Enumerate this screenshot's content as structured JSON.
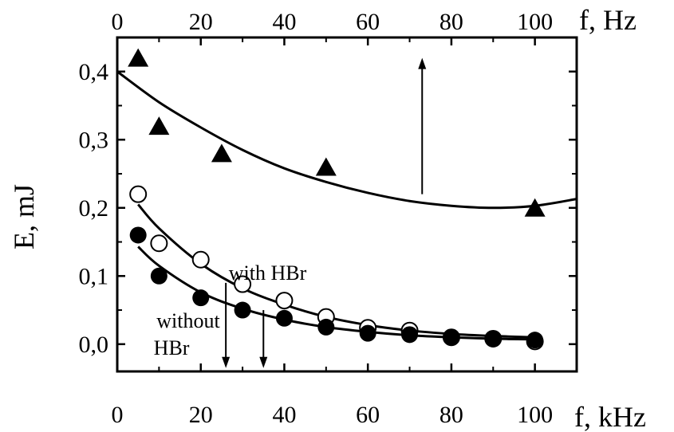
{
  "chart_data": {
    "type": "scatter",
    "title": "",
    "xlabel": "f, kHz",
    "x2label": "f, Hz",
    "ylabel": "E, mJ",
    "xlim": [
      0,
      110
    ],
    "x2lim": [
      0,
      110
    ],
    "ylim": [
      -0.04,
      0.45
    ],
    "x_ticks": [
      "0",
      "20",
      "40",
      "60",
      "80",
      "100"
    ],
    "x_tick_values": [
      0,
      20,
      40,
      60,
      80,
      100
    ],
    "x2_ticks": [
      "0",
      "20",
      "40",
      "60",
      "80",
      "100"
    ],
    "x2_tick_values": [
      0,
      20,
      40,
      60,
      80,
      100
    ],
    "y_ticks": [
      "0,0",
      "0,1",
      "0,2",
      "0,3",
      "0,4"
    ],
    "y_tick_values": [
      0.0,
      0.1,
      0.2,
      0.3,
      0.4
    ],
    "grid": false,
    "series": [
      {
        "axis": "top",
        "marker": "filled-triangle",
        "color": "#000000",
        "x": [
          5,
          10,
          25,
          50,
          100
        ],
        "y": [
          0.42,
          0.32,
          0.28,
          0.26,
          0.2
        ]
      },
      {
        "axis": "bottom",
        "marker": "open-circle",
        "color": "#000000",
        "x": [
          5,
          10,
          20,
          30,
          40,
          50,
          60,
          70,
          80,
          90,
          100
        ],
        "y": [
          0.22,
          0.148,
          0.124,
          0.088,
          0.064,
          0.04,
          0.024,
          0.02,
          0.01,
          0.008,
          0.004
        ]
      },
      {
        "axis": "bottom",
        "marker": "filled-circle",
        "color": "#000000",
        "x": [
          5,
          10,
          20,
          30,
          40,
          50,
          60,
          70,
          80,
          90,
          100
        ],
        "y": [
          0.16,
          0.1,
          0.068,
          0.05,
          0.038,
          0.025,
          0.016,
          0.014,
          0.01,
          0.008,
          0.006
        ]
      }
    ],
    "fit_curves": [
      {
        "axis": "top",
        "x": [
          0,
          10,
          20,
          30,
          40,
          50,
          60,
          70,
          80,
          90,
          100,
          110
        ],
        "y": [
          0.4,
          0.355,
          0.318,
          0.285,
          0.258,
          0.238,
          0.222,
          0.21,
          0.203,
          0.2,
          0.203,
          0.213
        ]
      },
      {
        "axis": "bottom",
        "x": [
          5,
          10,
          20,
          30,
          40,
          50,
          60,
          70,
          80,
          90,
          100
        ],
        "y": [
          0.205,
          0.17,
          0.118,
          0.082,
          0.058,
          0.04,
          0.028,
          0.02,
          0.015,
          0.012,
          0.01
        ]
      },
      {
        "axis": "bottom",
        "x": [
          5,
          10,
          20,
          30,
          40,
          50,
          60,
          70,
          80,
          90,
          100
        ],
        "y": [
          0.143,
          0.115,
          0.076,
          0.052,
          0.036,
          0.025,
          0.018,
          0.013,
          0.01,
          0.008,
          0.007
        ]
      }
    ],
    "annotations": [
      {
        "text": "with HBr",
        "x": 36,
        "y": 0.105
      },
      {
        "text": "without",
        "x": 17,
        "y": 0.035
      },
      {
        "text": "HBr",
        "x": 13,
        "y": -0.005
      }
    ],
    "arrows": [
      {
        "direction": "up",
        "x": 73,
        "y_from": 0.22,
        "y_to": 0.42
      },
      {
        "direction": "down",
        "x": 26,
        "y_from": 0.09,
        "y_to": -0.035
      },
      {
        "direction": "down",
        "x": 35,
        "y_from": 0.05,
        "y_to": -0.035
      }
    ]
  }
}
